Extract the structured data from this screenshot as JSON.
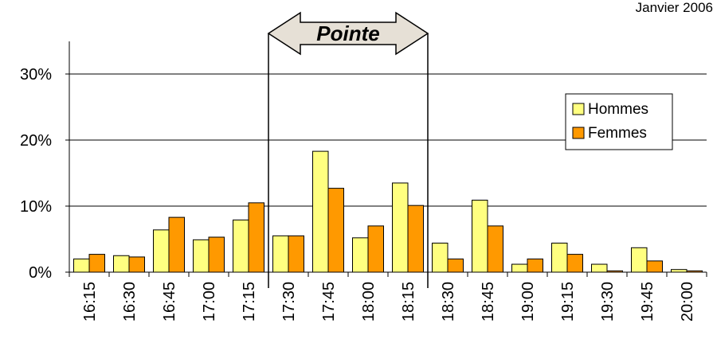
{
  "header": {
    "date": "Janvier 2006"
  },
  "annotation": {
    "label": "Pointe"
  },
  "legend": {
    "items": [
      {
        "label": "Hommes",
        "color": "#FFFF80"
      },
      {
        "label": "Femmes",
        "color": "#FF9900"
      }
    ]
  },
  "chart_data": {
    "type": "bar",
    "categories": [
      "16:15",
      "16:30",
      "16:45",
      "17:00",
      "17:15",
      "17:30",
      "17:45",
      "18:00",
      "18:15",
      "18:30",
      "18:45",
      "19:00",
      "19:15",
      "19:30",
      "19:45",
      "20:00"
    ],
    "series": [
      {
        "name": "Hommes",
        "color": "#FFFF80",
        "values": [
          2.0,
          2.5,
          6.4,
          4.9,
          7.9,
          5.5,
          18.3,
          5.2,
          13.5,
          4.4,
          10.9,
          1.2,
          4.4,
          1.2,
          3.7,
          0.4
        ]
      },
      {
        "name": "Femmes",
        "color": "#FF9900",
        "values": [
          2.7,
          2.3,
          8.3,
          5.3,
          10.5,
          5.5,
          12.7,
          7.0,
          10.1,
          2.0,
          7.0,
          2.0,
          2.7,
          0.2,
          1.7,
          0.2
        ]
      }
    ],
    "yticks": [
      "0%",
      "10%",
      "20%",
      "30%"
    ],
    "ylim": [
      0,
      30
    ],
    "grid": true,
    "legend_position": "right",
    "peak_range": [
      "17:30",
      "18:15"
    ]
  }
}
